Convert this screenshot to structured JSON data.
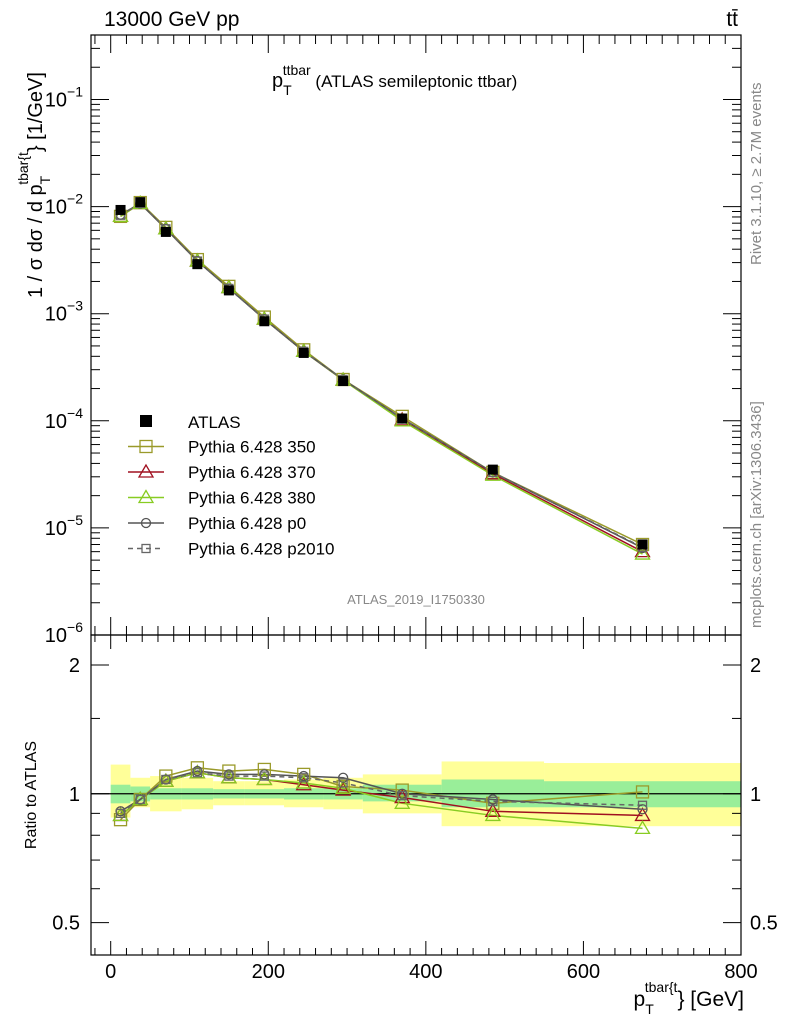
{
  "header": {
    "energy": "13000 GeV pp",
    "process": "tt̄"
  },
  "side_labels": {
    "rivet": "Rivet 3.1.10, ≥ 2.7M events",
    "mcplots": "mcplots.cern.ch [arXiv:1306.3436]"
  },
  "watermark": "ATLAS_2019_I1750330",
  "chart_data": [
    {
      "type": "line",
      "title": {
        "main": "p",
        "sup": "ttbar",
        "sub": "T",
        "rest": " (ATLAS semileptonic ttbar)"
      },
      "ylabel": {
        "p1": "1 / σ dσ / d p",
        "sub": "T",
        "sup": "tbar{t",
        "p2": "} [1/GeV]"
      },
      "yscale": "log",
      "ylim": [
        1e-06,
        0.4
      ],
      "xlim": [
        -25,
        800
      ],
      "y_ticks": [
        {
          "v": 1e-06,
          "base": "10",
          "exp": "−6"
        },
        {
          "v": 1e-05,
          "base": "10",
          "exp": "−5"
        },
        {
          "v": 0.0001,
          "base": "10",
          "exp": "−4"
        },
        {
          "v": 0.001,
          "base": "10",
          "exp": "−3"
        },
        {
          "v": 0.01,
          "base": "10",
          "exp": "−2"
        },
        {
          "v": 0.1,
          "base": "10",
          "exp": "−1"
        }
      ],
      "legend_position": "center-left",
      "x": [
        12.5,
        37.5,
        70,
        110,
        150,
        195,
        245,
        295,
        370,
        485,
        675
      ],
      "data": {
        "name": "ATLAS",
        "values": [
          0.0093,
          0.011,
          0.0058,
          0.0029,
          0.00165,
          0.00085,
          0.00043,
          0.000235,
          0.000105,
          3.5e-05,
          7e-06
        ]
      },
      "series": [
        {
          "name": "Pythia 6.428 350",
          "color": "#9a9a2a",
          "marker": "square",
          "dash": false,
          "values": [
            0.0081,
            0.0109,
            0.0064,
            0.0032,
            0.0018,
            0.00093,
            0.00046,
            0.000243,
            0.00011,
            3.3e-05,
            7e-06
          ]
        },
        {
          "name": "Pythia 6.428 370",
          "color": "#a01020",
          "marker": "triangle",
          "dash": false,
          "values": [
            0.0081,
            0.0107,
            0.0062,
            0.0031,
            0.00175,
            0.00089,
            0.000445,
            0.00024,
            0.000102,
            3.2e-05,
            6e-06
          ]
        },
        {
          "name": "Pythia 6.428 380",
          "color": "#88cc22",
          "marker": "triangle",
          "dash": false,
          "values": [
            0.0081,
            0.0107,
            0.0062,
            0.0031,
            0.00175,
            0.00089,
            0.000445,
            0.00024,
            0.0001,
            3.1e-05,
            5.7e-06
          ]
        },
        {
          "name": "Pythia 6.428 p0",
          "color": "#555555",
          "marker": "circle",
          "dash": false,
          "values": [
            0.0084,
            0.0107,
            0.0062,
            0.0031,
            0.00172,
            0.00089,
            0.000445,
            0.000243,
            0.000105,
            3.3e-05,
            6.5e-06
          ]
        },
        {
          "name": "Pythia 6.428 p2010",
          "color": "#666666",
          "marker": "square",
          "dash": true,
          "values": [
            0.0083,
            0.0107,
            0.0062,
            0.0031,
            0.00172,
            0.00089,
            0.000445,
            0.000243,
            0.000104,
            3.3e-05,
            6.6e-06
          ]
        }
      ]
    },
    {
      "type": "line",
      "ylabel": "Ratio to ATLAS",
      "yscale": "log",
      "ylim": [
        0.42,
        2.35
      ],
      "xlim": [
        -25,
        800
      ],
      "xlabel": {
        "p1": "p",
        "sub": "T",
        "sup": "tbar{t",
        "p2": "} [GeV]"
      },
      "x_ticks": [
        0,
        200,
        400,
        600,
        800
      ],
      "y_ticks": [
        0.5,
        1,
        2
      ],
      "reference": 1,
      "bins": [
        {
          "lo": 0,
          "hi": 25,
          "band": [
            0.95,
            1.05
          ],
          "band2": [
            0.88,
            1.17
          ]
        },
        {
          "lo": 25,
          "hi": 50,
          "band": [
            0.96,
            1.04
          ],
          "band2": [
            0.93,
            1.09
          ]
        },
        {
          "lo": 50,
          "hi": 90,
          "band": [
            0.97,
            1.03
          ],
          "band2": [
            0.91,
            1.1
          ]
        },
        {
          "lo": 90,
          "hi": 130,
          "band": [
            0.97,
            1.03
          ],
          "band2": [
            0.92,
            1.09
          ]
        },
        {
          "lo": 130,
          "hi": 170,
          "band": [
            0.975,
            1.025
          ],
          "band2": [
            0.94,
            1.07
          ]
        },
        {
          "lo": 170,
          "hi": 220,
          "band": [
            0.975,
            1.025
          ],
          "band2": [
            0.94,
            1.07
          ]
        },
        {
          "lo": 220,
          "hi": 270,
          "band": [
            0.97,
            1.03
          ],
          "band2": [
            0.93,
            1.08
          ]
        },
        {
          "lo": 270,
          "hi": 320,
          "band": [
            0.97,
            1.03
          ],
          "band2": [
            0.92,
            1.09
          ]
        },
        {
          "lo": 320,
          "hi": 420,
          "band": [
            0.96,
            1.05
          ],
          "band2": [
            0.9,
            1.11
          ]
        },
        {
          "lo": 420,
          "hi": 550,
          "band": [
            0.93,
            1.08
          ],
          "band2": [
            0.84,
            1.19
          ]
        },
        {
          "lo": 550,
          "hi": 800,
          "band": [
            0.93,
            1.07
          ],
          "band2": [
            0.84,
            1.18
          ]
        }
      ],
      "series": [
        {
          "name": "Pythia 6.428 350",
          "values": [
            0.87,
            0.97,
            1.1,
            1.15,
            1.13,
            1.14,
            1.11,
            1.04,
            1.02,
            0.95,
            1.01
          ]
        },
        {
          "name": "Pythia 6.428 370",
          "values": [
            0.89,
            0.97,
            1.07,
            1.12,
            1.09,
            1.08,
            1.05,
            1.02,
            0.98,
            0.91,
            0.89
          ]
        },
        {
          "name": "Pythia 6.428 380",
          "values": [
            0.89,
            0.97,
            1.07,
            1.12,
            1.09,
            1.08,
            1.06,
            1.03,
            0.95,
            0.89,
            0.83
          ]
        },
        {
          "name": "Pythia 6.428 p0",
          "values": [
            0.91,
            0.97,
            1.08,
            1.13,
            1.11,
            1.11,
            1.1,
            1.09,
            1.0,
            0.97,
            0.92
          ]
        },
        {
          "name": "Pythia 6.428 p2010",
          "values": [
            0.9,
            0.97,
            1.08,
            1.12,
            1.1,
            1.1,
            1.09,
            1.06,
            0.99,
            0.96,
            0.94
          ]
        }
      ]
    }
  ]
}
